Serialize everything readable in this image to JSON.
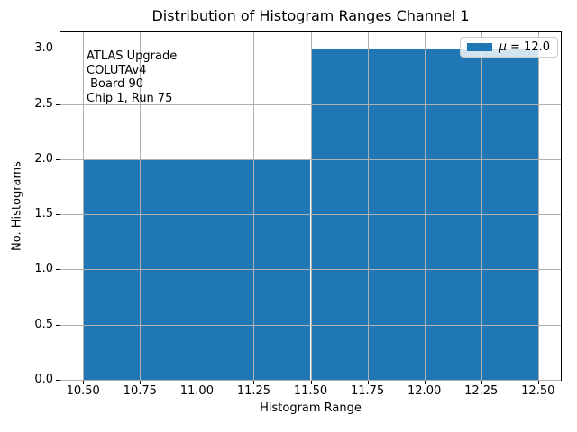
{
  "annotation": {
    "lines": [
      "ATLAS Upgrade",
      "COLUTAv4",
      " Board 90",
      "Chip 1, Run 75"
    ]
  },
  "legend_display": {
    "symbol": "μ",
    "rest": " = 12.0"
  },
  "chart_data": {
    "type": "bar",
    "title": "Distribution of Histogram Ranges Channel 1",
    "xlabel": "Histogram Range",
    "ylabel": "No. Histograms",
    "bins": [
      {
        "x0": 10.5,
        "x1": 11.5,
        "count": 2
      },
      {
        "x0": 11.5,
        "x1": 12.5,
        "count": 3
      }
    ],
    "xlim": [
      10.4,
      12.6
    ],
    "ylim": [
      0,
      3.15
    ],
    "xticks": [
      {
        "v": 10.5,
        "label": "10.50"
      },
      {
        "v": 10.75,
        "label": "10.75"
      },
      {
        "v": 11.0,
        "label": "11.00"
      },
      {
        "v": 11.25,
        "label": "11.25"
      },
      {
        "v": 11.5,
        "label": "11.50"
      },
      {
        "v": 11.75,
        "label": "11.75"
      },
      {
        "v": 12.0,
        "label": "12.00"
      },
      {
        "v": 12.25,
        "label": "12.25"
      },
      {
        "v": 12.5,
        "label": "12.50"
      }
    ],
    "yticks": [
      {
        "v": 0.0,
        "label": "0.0"
      },
      {
        "v": 0.5,
        "label": "0.5"
      },
      {
        "v": 1.0,
        "label": "1.0"
      },
      {
        "v": 1.5,
        "label": "1.5"
      },
      {
        "v": 2.0,
        "label": "2.0"
      },
      {
        "v": 2.5,
        "label": "2.5"
      },
      {
        "v": 3.0,
        "label": "3.0"
      }
    ],
    "grid": true,
    "grid_on_top_of_bars": true,
    "grid_color": "#b0b0b0",
    "bar_color": "#1f77b4",
    "legend": {
      "label": "μ = 12.0",
      "location": "upper right"
    }
  }
}
